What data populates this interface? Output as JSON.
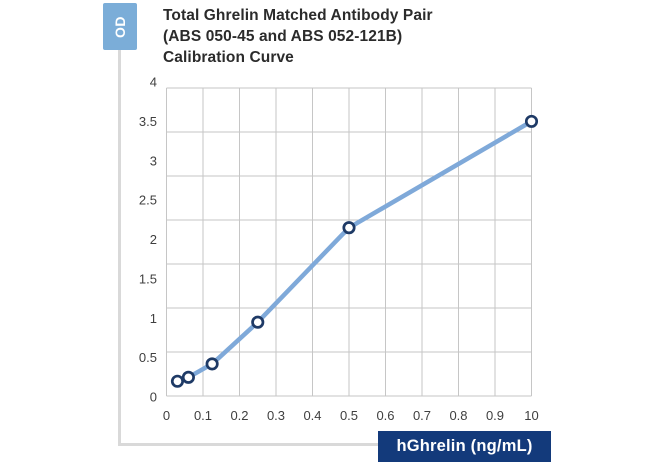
{
  "title": {
    "lines": [
      "Total Ghrelin Matched Antibody Pair",
      "(ABS 050-45 and ABS 052-121B)",
      "Calibration Curve"
    ],
    "color": "#2b2b2b"
  },
  "y_axis_badge": {
    "label": "OD",
    "bg": "#7badd8"
  },
  "x_axis_badge": {
    "label": "hGhrelin (ng/mL)",
    "bg": "#133a7b"
  },
  "frame_color": "#d9d9d9",
  "chart_data": {
    "type": "line",
    "title": "Total Ghrelin Matched Antibody Pair (ABS 050-45 and ABS 052-121B) Calibration Curve",
    "xlabel": "hGhrelin (ng/mL)",
    "ylabel": "OD",
    "x": [
      0.03,
      0.06,
      0.125,
      0.25,
      0.5,
      10
    ],
    "y": [
      0.2,
      0.25,
      0.42,
      0.95,
      2.15,
      3.5
    ],
    "x_tick_labels": [
      "0",
      "0.1",
      "0.2",
      "0.3",
      "0.4",
      "0.5",
      "0.6",
      "0.7",
      "0.8",
      "0.9",
      "10"
    ],
    "y_tick_labels": [
      "4",
      "3.5",
      "3",
      "2.5",
      "2",
      "1.5",
      "1",
      "0.5",
      "0"
    ],
    "ylim": [
      0,
      4
    ],
    "xlim_note": "x axis linear 0-0.9 in 0.1 steps, final gridline labeled 10",
    "grid": {
      "on": true,
      "rows": 7,
      "cols": 10,
      "color": "#c6c6c6"
    },
    "legend": "none",
    "line_color": "#7fa9d9",
    "marker": {
      "shape": "circle",
      "fill": "#ffffff",
      "stroke": "#1e3a66"
    },
    "tick_text_color": "#3f3f3f"
  }
}
